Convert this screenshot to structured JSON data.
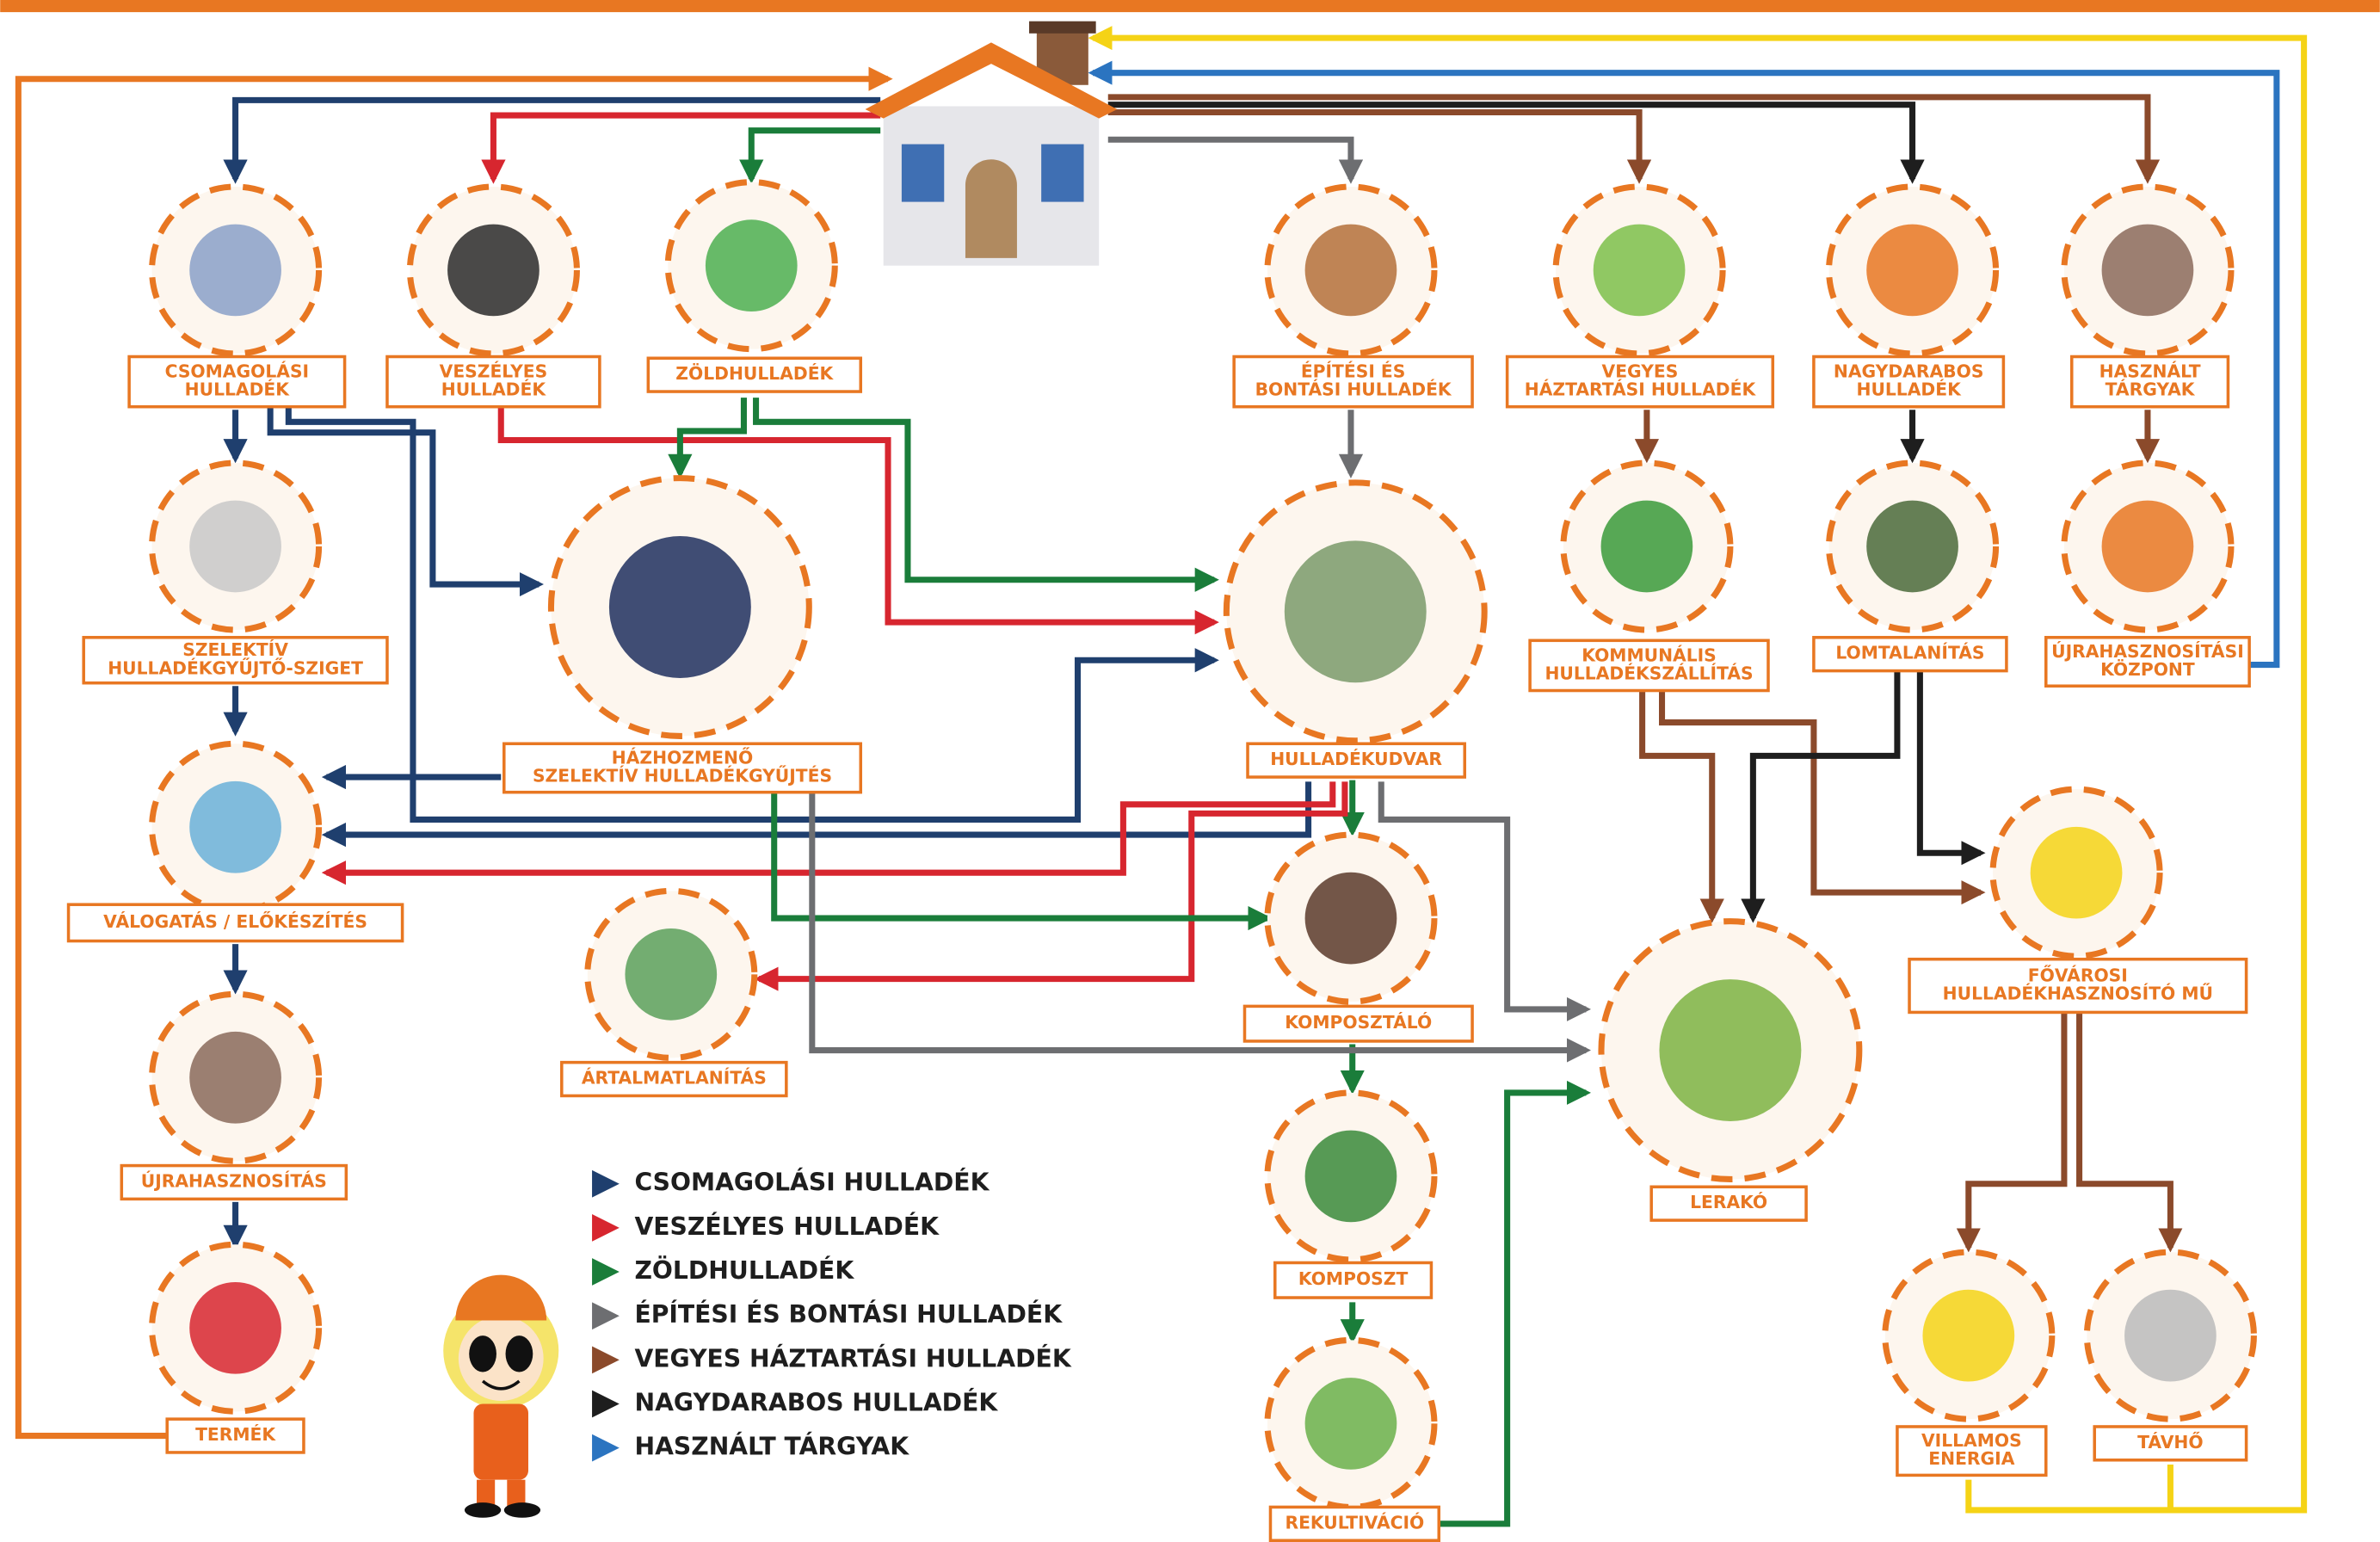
{
  "nodes": [
    {
      "label": [
        "CSOMAGOLÁSI",
        "HULLADÉK"
      ]
    },
    {
      "label": [
        "VESZÉLYES",
        "HULLADÉK"
      ]
    },
    {
      "label": [
        "ZÖLDHULLADÉK"
      ]
    },
    {
      "label": [
        "ÉPÍTÉSI ÉS",
        "BONTÁSI HULLADÉK"
      ]
    },
    {
      "label": [
        "VEGYES",
        "HÁZTARTÁSI HULLADÉK"
      ]
    },
    {
      "label": [
        "NAGYDARABOS",
        "HULLADÉK"
      ]
    },
    {
      "label": [
        "HASZNÁLT",
        "TÁRGYAK"
      ]
    },
    {
      "label": [
        "SZELEKTÍV",
        "HULLADÉKGYŰJTŐ-SZIGET"
      ]
    },
    {
      "label": [
        "HÁZHOZMENŐ",
        "SZELEKTÍV HULLADÉKGYŰJTÉS"
      ]
    },
    {
      "label": [
        "HULLADÉKUDVAR"
      ]
    },
    {
      "label": [
        "KOMMUNÁLIS",
        "HULLADÉKSZÁLLÍTÁS"
      ]
    },
    {
      "label": [
        "LOMTALANÍTÁS"
      ]
    },
    {
      "label": [
        "ÚJRAHASZNOSÍTÁSI",
        "KÖZPONT"
      ]
    },
    {
      "label": [
        "VÁLOGATÁS / ELŐKÉSZÍTÉS"
      ]
    },
    {
      "label": [
        "ÁRTALMATLANÍTÁS"
      ]
    },
    {
      "label": [
        "KOMPOSZTÁLÓ"
      ]
    },
    {
      "label": [
        "LERAKÓ"
      ]
    },
    {
      "label": [
        "FŐVÁROSI",
        "HULLADÉKHASZNOSÍTÓ MŰ"
      ]
    },
    {
      "label": [
        "ÚJRAHASZNOSÍTÁS"
      ]
    },
    {
      "label": [
        "TERMÉK"
      ]
    },
    {
      "label": [
        "KOMPOSZT"
      ]
    },
    {
      "label": [
        "REKULTIVÁCIÓ"
      ]
    },
    {
      "label": [
        "VILLAMOS",
        "ENERGIA"
      ]
    },
    {
      "label": [
        "TÁVHŐ"
      ]
    }
  ],
  "legend": [
    "CSOMAGOLÁSI HULLADÉK",
    "VESZÉLYES HULLADÉK",
    "ZÖLDHULLADÉK",
    "ÉPÍTÉSI ÉS BONTÁSI HULLADÉK",
    "VEGYES HÁZTARTÁSI HULLADÉK",
    "NAGYDARABOS HULLADÉK",
    "HASZNÁLT TÁRGYAK"
  ]
}
